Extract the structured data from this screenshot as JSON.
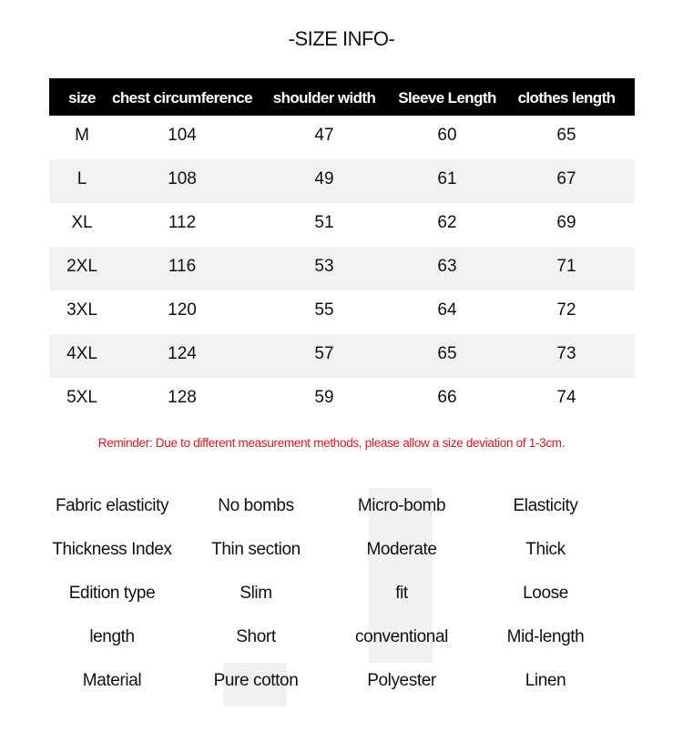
{
  "title": "-SIZE INFO-",
  "table": {
    "headers": [
      "size",
      "chest circumference",
      "shoulder width",
      "Sleeve Length",
      "clothes length"
    ],
    "rows": [
      [
        "M",
        "104",
        "47",
        "60",
        "65"
      ],
      [
        "L",
        "108",
        "49",
        "61",
        "67"
      ],
      [
        "XL",
        "112",
        "51",
        "62",
        "69"
      ],
      [
        "2XL",
        "116",
        "53",
        "63",
        "71"
      ],
      [
        "3XL",
        "120",
        "55",
        "64",
        "72"
      ],
      [
        "4XL",
        "124",
        "57",
        "65",
        "73"
      ],
      [
        "5XL",
        "128",
        "59",
        "66",
        "74"
      ]
    ]
  },
  "reminder": "Reminder: Due to different measurement methods, please allow a size deviation of 1-3cm.",
  "attributes": [
    {
      "label": "Fabric elasticity",
      "options": [
        "No bombs",
        "Micro-bomb",
        "Elasticity"
      ],
      "selected": 1
    },
    {
      "label": "Thickness Index",
      "options": [
        "Thin section",
        "Moderate",
        "Thick"
      ],
      "selected": 1
    },
    {
      "label": "Edition type",
      "options": [
        "Slim",
        "fit",
        "Loose"
      ],
      "selected": 1
    },
    {
      "label": "length",
      "options": [
        "Short",
        "conventional",
        "Mid-length"
      ],
      "selected": 1
    },
    {
      "label": "Material",
      "options": [
        "Pure cotton",
        "Polyester",
        "Linen"
      ],
      "selected": 0
    }
  ],
  "colors": {
    "header_bg": "#000000",
    "stripe": "#f2f2f2",
    "reminder": "#e0141e",
    "highlight": "#f1f1f1"
  }
}
